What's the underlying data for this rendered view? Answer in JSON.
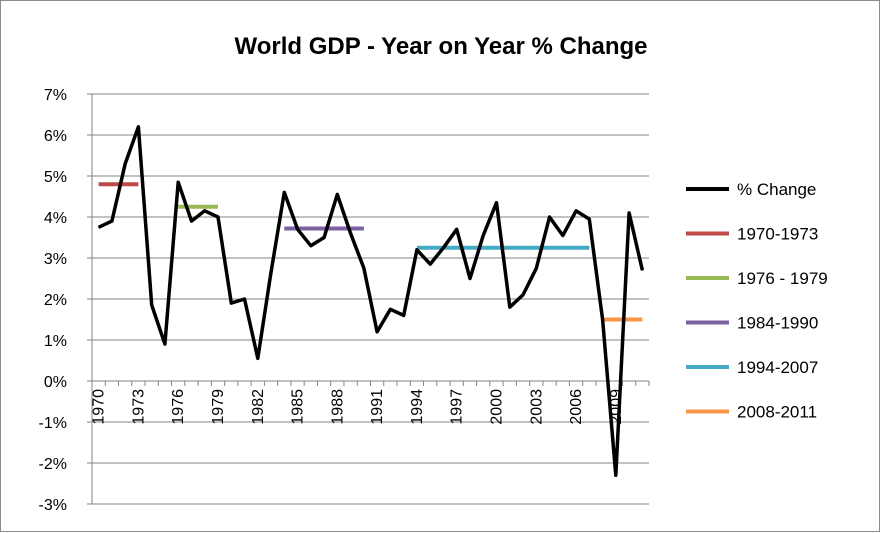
{
  "chart_data": {
    "type": "line",
    "title": "World GDP - Year on Year % Change",
    "xlabel": "",
    "ylabel": "",
    "ylim": [
      -3,
      7
    ],
    "yticks": [
      "7%",
      "6%",
      "5%",
      "4%",
      "3%",
      "2%",
      "1%",
      "0%",
      "-1%",
      "-2%",
      "-3%"
    ],
    "ytick_values": [
      7,
      6,
      5,
      4,
      3,
      2,
      1,
      0,
      -1,
      -2,
      -3
    ],
    "xtick_labels": [
      "1970",
      "1973",
      "1976",
      "1979",
      "1982",
      "1985",
      "1988",
      "1991",
      "1994",
      "1997",
      "2000",
      "2003",
      "2006",
      "2009"
    ],
    "grid": true,
    "legend_position": "right",
    "series": [
      {
        "name": "% Change",
        "color": "#000000",
        "x": [
          1970,
          1971,
          1972,
          1973,
          1974,
          1975,
          1976,
          1977,
          1978,
          1979,
          1980,
          1981,
          1982,
          1983,
          1984,
          1985,
          1986,
          1987,
          1988,
          1989,
          1990,
          1991,
          1992,
          1993,
          1994,
          1995,
          1996,
          1997,
          1998,
          1999,
          2000,
          2001,
          2002,
          2003,
          2004,
          2005,
          2006,
          2007,
          2008,
          2009,
          2010,
          2011
        ],
        "y": [
          3.75,
          3.9,
          5.3,
          6.2,
          1.85,
          0.9,
          4.85,
          3.9,
          4.15,
          4.0,
          1.9,
          2.0,
          0.55,
          2.65,
          4.6,
          3.7,
          3.3,
          3.5,
          4.55,
          3.6,
          2.75,
          1.2,
          1.75,
          1.6,
          3.2,
          2.85,
          3.25,
          3.7,
          2.5,
          3.55,
          4.35,
          1.8,
          2.1,
          2.75,
          4.0,
          3.55,
          4.15,
          3.95,
          1.5,
          -2.3,
          4.1,
          2.7
        ]
      },
      {
        "name": "1970-1973",
        "color": "#be4b48",
        "x": [
          1970,
          1973
        ],
        "y": [
          4.8,
          4.8
        ]
      },
      {
        "name": "1976 - 1979",
        "color": "#98b954",
        "x": [
          1976,
          1979
        ],
        "y": [
          4.25,
          4.25
        ]
      },
      {
        "name": "1984-1990",
        "color": "#7d60a0",
        "x": [
          1984,
          1990
        ],
        "y": [
          3.72,
          3.72
        ]
      },
      {
        "name": "1994-2007",
        "color": "#46aac5",
        "x": [
          1994,
          2007
        ],
        "y": [
          3.25,
          3.25
        ]
      },
      {
        "name": "2008-2011",
        "color": "#f79646",
        "x": [
          2008,
          2011
        ],
        "y": [
          1.5,
          1.5
        ]
      }
    ]
  }
}
